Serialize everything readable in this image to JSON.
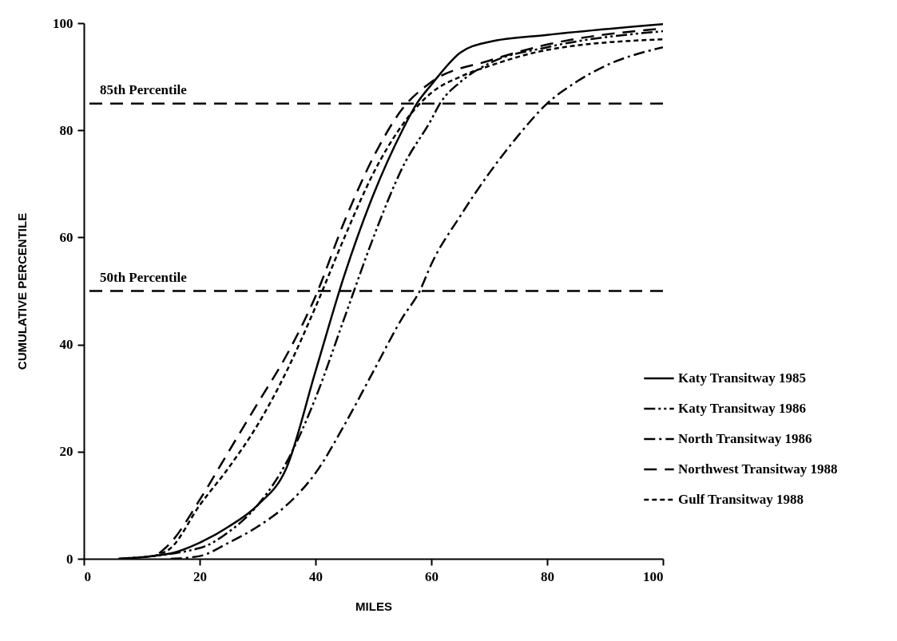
{
  "chart_data": {
    "type": "line",
    "xlabel": "MILES",
    "ylabel": "CUMULATIVE PERCENTILE",
    "xlim": [
      0,
      100
    ],
    "ylim": [
      0,
      100
    ],
    "xticks": [
      0,
      20,
      40,
      60,
      80,
      100
    ],
    "yticks": [
      0,
      20,
      40,
      60,
      80,
      100
    ],
    "grid": false,
    "legend": "bottom right",
    "series": [
      {
        "name": "Katy Transitway 1985",
        "color": "#000000",
        "line_style": "solid",
        "x": [
          6,
          15,
          20,
          25,
          30,
          35,
          40,
          45,
          50,
          55,
          57.5,
          60,
          65,
          70,
          80,
          100
        ],
        "values": [
          0,
          1,
          3,
          6,
          10,
          17,
          35,
          53,
          68,
          80,
          85,
          88.5,
          94.5,
          96.5,
          97.8,
          99.8
        ]
      },
      {
        "name": "Katy Transitway 1986",
        "color": "#000000",
        "line_style": "dashdotdot",
        "x": [
          6,
          20,
          25,
          30,
          35,
          40,
          45,
          50,
          55,
          60,
          61.5,
          65,
          70,
          80,
          100
        ],
        "values": [
          0,
          2,
          5,
          10,
          18,
          30,
          45,
          60,
          73,
          82,
          85,
          89,
          92.5,
          95.5,
          98.5
        ]
      },
      {
        "name": "North Transitway 1986",
        "color": "#000000",
        "line_style": "dashdot",
        "x": [
          15,
          20,
          25,
          30,
          35,
          40,
          45,
          50,
          55,
          58,
          60,
          65,
          70,
          75,
          80,
          85,
          90,
          100
        ],
        "values": [
          0,
          0.5,
          3,
          6,
          10,
          16,
          25,
          35,
          45,
          50,
          55,
          64,
          72,
          79,
          85,
          89,
          92,
          95.5
        ]
      },
      {
        "name": "Northwest Transitway 1988",
        "color": "#000000",
        "line_style": "longdash",
        "x": [
          13,
          15,
          20,
          25,
          30,
          35,
          40,
          45,
          50,
          55,
          60,
          70,
          80,
          100
        ],
        "values": [
          1,
          3,
          11,
          20,
          29,
          38,
          49,
          63,
          75,
          84,
          89,
          93,
          96,
          99
        ]
      },
      {
        "name": "Gulf Transitway 1988",
        "color": "#000000",
        "line_style": "dashed",
        "x": [
          12,
          15,
          20,
          25,
          30,
          35,
          40,
          45,
          50,
          55,
          60,
          65,
          70,
          80,
          100
        ],
        "values": [
          0.5,
          2,
          10,
          17,
          25,
          35,
          47,
          60,
          72,
          81,
          87,
          90,
          92,
          95,
          97
        ]
      }
    ],
    "ref_lines": [
      {
        "axis": "y",
        "value": 85,
        "label": "85th Percentile",
        "color": "#000000",
        "line_style": "longdash"
      },
      {
        "axis": "y",
        "value": 50,
        "label": "50th Percentile",
        "color": "#000000",
        "line_style": "longdash"
      }
    ]
  }
}
